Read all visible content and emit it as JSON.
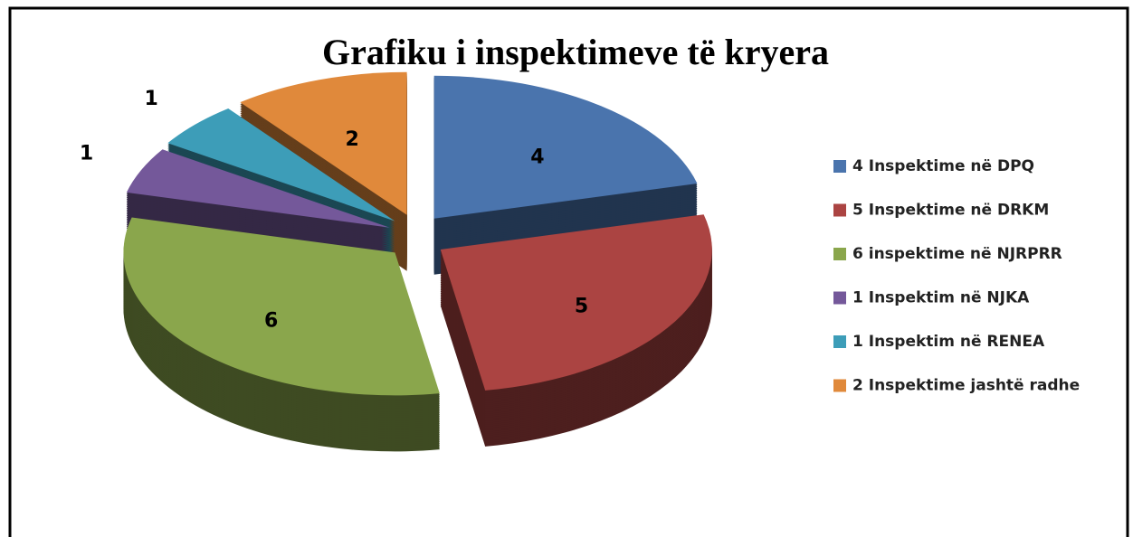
{
  "chart_data": {
    "type": "pie",
    "title": "Grafiku i inspektimeve të kryera",
    "categories": [
      "4 Inspektime në DPQ",
      "5 Inspektime në DRKM",
      "6 inspektime në NJRPRR",
      "1 Inspektim në NJKA",
      "1 Inspektim në RENEA",
      "2 Inspektime jashtë radhe"
    ],
    "values": [
      4,
      5,
      6,
      1,
      1,
      2
    ],
    "colors": [
      "#4a74ad",
      "#ab4442",
      "#8aa64c",
      "#74589a",
      "#3d9db8",
      "#e0893b"
    ],
    "legend": "right"
  }
}
